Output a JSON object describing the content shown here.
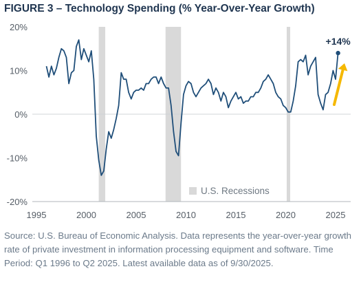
{
  "title": "FIGURE 3 – Technology Spending (% Year-Over-Year Growth)",
  "source_text": "Source: U.S. Bureau of Economic Analysis. Data represents the year-over-year growth rate of private investment in information processing equipment and software. Time Period: Q1 1996 to Q2 2025. Latest available data as of 9/30/2025.",
  "chart_data": {
    "type": "line",
    "title": "FIGURE 3 – Technology Spending (% Year-Over-Year Growth)",
    "xlabel": "",
    "ylabel": "",
    "xlim": [
      1995,
      2026.5
    ],
    "ylim": [
      -20,
      20
    ],
    "x_ticks": [
      1995,
      2000,
      2005,
      2010,
      2015,
      2020,
      2025
    ],
    "x_tick_labels": [
      "1995",
      "2000",
      "2005",
      "2010",
      "2015",
      "2020",
      "2025"
    ],
    "y_ticks": [
      20,
      10,
      0,
      -10,
      -20
    ],
    "y_tick_labels": [
      "20%",
      "10%",
      "0%",
      "-10%",
      "-20%"
    ],
    "grid": false,
    "line_color": "#1f4e79",
    "recession_color": "#d9d9d9",
    "arrow_color": "#f5b800",
    "recessions": [
      {
        "start": 2001.25,
        "end": 2001.9
      },
      {
        "start": 2007.95,
        "end": 2009.5
      },
      {
        "start": 2020.1,
        "end": 2020.45
      }
    ],
    "legend": {
      "label": "U.S. Recessions",
      "placement": "bottom-right"
    },
    "annotation": {
      "text": "+14%",
      "x": 2025.25,
      "y": 14
    },
    "series": [
      {
        "x": [
          1996.0,
          1996.25,
          1996.5,
          1996.75,
          1997.0,
          1997.25,
          1997.5,
          1997.75,
          1998.0,
          1998.25,
          1998.5,
          1998.75,
          1999.0,
          1999.25,
          1999.5,
          1999.75,
          2000.0,
          2000.25,
          2000.5,
          2000.75,
          2001.0,
          2001.25,
          2001.5,
          2001.75,
          2002.0,
          2002.25,
          2002.5,
          2002.75,
          2003.0,
          2003.25,
          2003.5,
          2003.75,
          2004.0,
          2004.25,
          2004.5,
          2004.75,
          2005.0,
          2005.25,
          2005.5,
          2005.75,
          2006.0,
          2006.25,
          2006.5,
          2006.75,
          2007.0,
          2007.25,
          2007.5,
          2007.75,
          2008.0,
          2008.25,
          2008.5,
          2008.75,
          2009.0,
          2009.25,
          2009.5,
          2009.75,
          2010.0,
          2010.25,
          2010.5,
          2010.75,
          2011.0,
          2011.25,
          2011.5,
          2011.75,
          2012.0,
          2012.25,
          2012.5,
          2012.75,
          2013.0,
          2013.25,
          2013.5,
          2013.75,
          2014.0,
          2014.25,
          2014.5,
          2014.75,
          2015.0,
          2015.25,
          2015.5,
          2015.75,
          2016.0,
          2016.25,
          2016.5,
          2016.75,
          2017.0,
          2017.25,
          2017.5,
          2017.75,
          2018.0,
          2018.25,
          2018.5,
          2018.75,
          2019.0,
          2019.25,
          2019.5,
          2019.75,
          2020.0,
          2020.25,
          2020.5,
          2020.75,
          2021.0,
          2021.25,
          2021.5,
          2021.75,
          2022.0,
          2022.25,
          2022.5,
          2022.75,
          2023.0,
          2023.25,
          2023.5,
          2023.75,
          2024.0,
          2024.25,
          2024.5,
          2024.75,
          2025.0,
          2025.25
        ],
        "values": [
          11.0,
          8.5,
          11.0,
          9.0,
          10.5,
          13.0,
          15.0,
          14.5,
          13.0,
          7.0,
          9.5,
          10.0,
          15.5,
          17.0,
          12.5,
          15.0,
          13.5,
          12.0,
          14.5,
          8.0,
          -5.0,
          -10.5,
          -14.0,
          -13.0,
          -8.0,
          -4.0,
          -5.5,
          -3.5,
          -1.0,
          2.0,
          9.5,
          8.0,
          8.0,
          5.0,
          3.5,
          5.0,
          5.5,
          5.5,
          6.0,
          5.5,
          7.0,
          7.0,
          8.0,
          8.5,
          8.5,
          7.0,
          8.5,
          7.0,
          6.0,
          6.0,
          2.0,
          -4.0,
          -8.5,
          -9.5,
          -2.0,
          4.5,
          6.5,
          7.5,
          7.0,
          5.0,
          4.0,
          5.0,
          6.0,
          6.5,
          7.0,
          8.0,
          7.0,
          4.5,
          6.0,
          5.0,
          3.0,
          5.0,
          4.0,
          1.5,
          3.0,
          4.0,
          5.0,
          3.5,
          4.0,
          2.5,
          3.0,
          3.0,
          4.0,
          4.0,
          5.0,
          5.0,
          6.0,
          7.5,
          8.0,
          9.0,
          8.0,
          7.0,
          5.0,
          4.0,
          3.5,
          2.0,
          1.5,
          0.5,
          0.5,
          3.0,
          6.5,
          12.0,
          12.5,
          12.0,
          13.5,
          9.0,
          11.0,
          12.0,
          13.0,
          4.5,
          2.5,
          1.0,
          4.5,
          5.0,
          7.0,
          10.0,
          8.0,
          14.0
        ]
      }
    ]
  }
}
